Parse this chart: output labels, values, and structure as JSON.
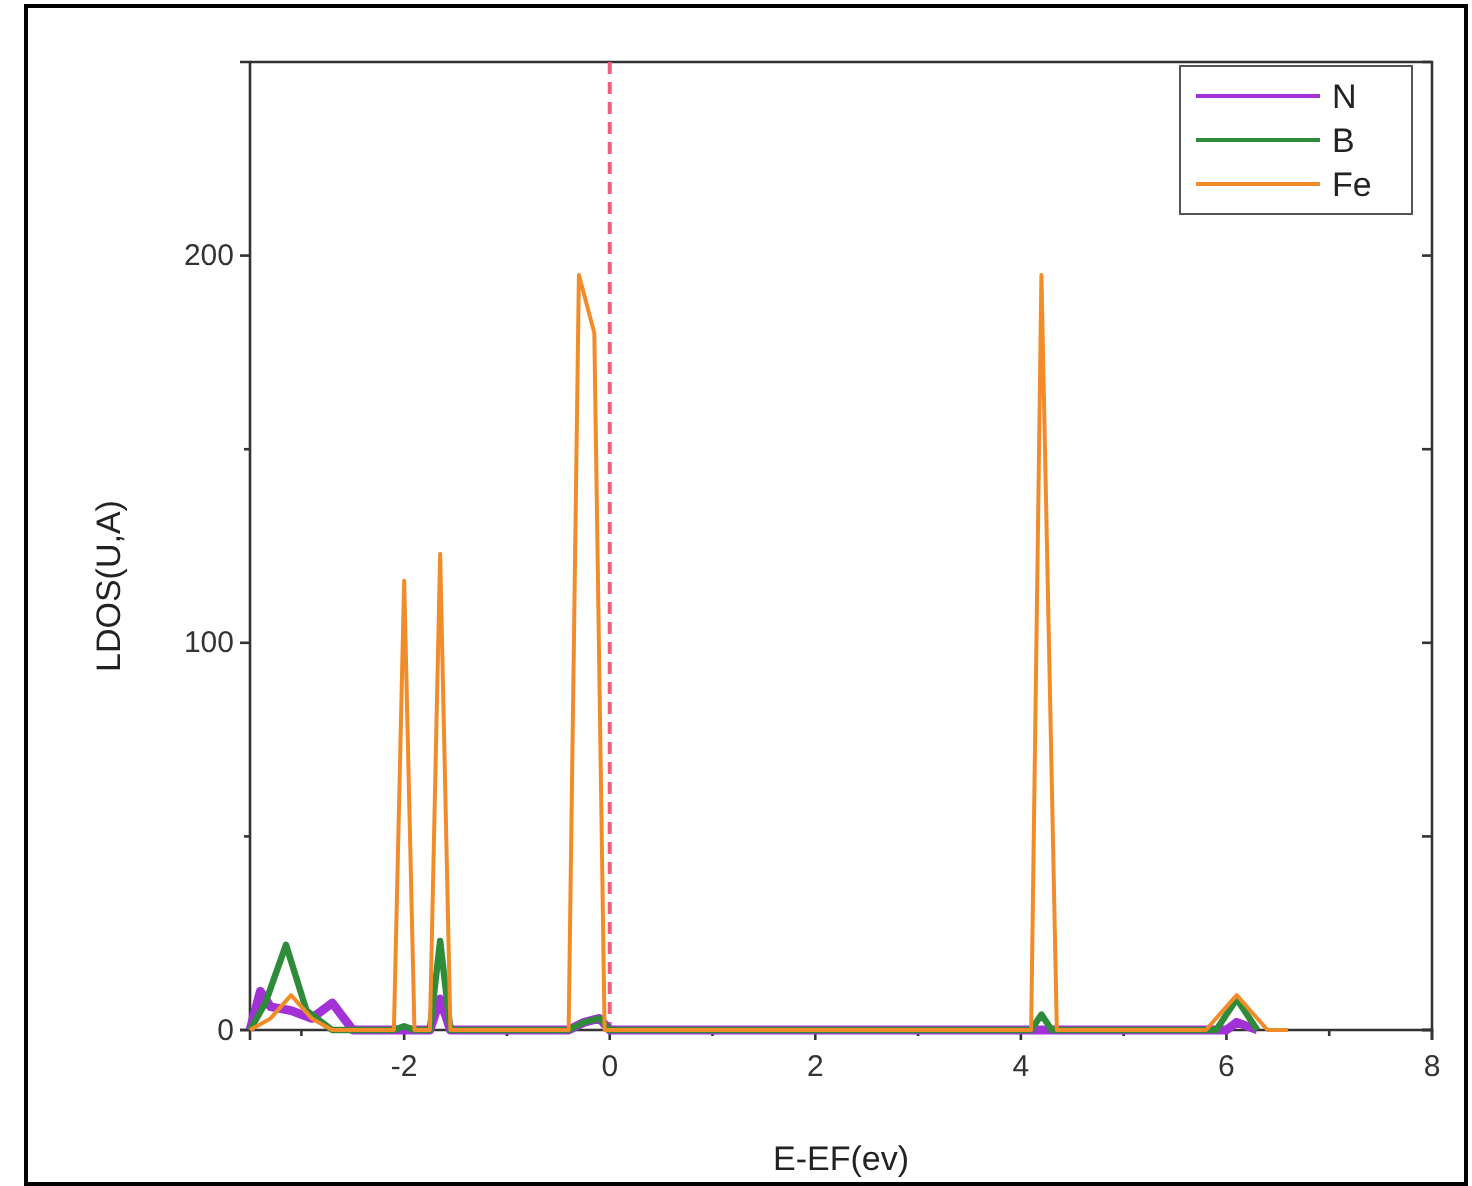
{
  "chart_data": {
    "type": "line",
    "xlabel": "E-EF(ev)",
    "ylabel": "LDOS(U,A)",
    "xlim": [
      -3.5,
      8
    ],
    "ylim": [
      0,
      250
    ],
    "xticks": [
      {
        "value": -3,
        "label": null
      },
      -2,
      {
        "value": -1,
        "label": null
      },
      0,
      {
        "value": 1,
        "label": null
      },
      2,
      {
        "value": 3,
        "label": null
      },
      4,
      {
        "value": 5,
        "label": null
      },
      6,
      {
        "value": 7,
        "label": null
      },
      8
    ],
    "yticks": [
      0,
      {
        "value": 50,
        "label": null
      },
      100,
      {
        "value": 150,
        "label": null
      },
      200
    ],
    "legend": "top right",
    "grid": false,
    "marker": "none",
    "line_style": "solid",
    "ref_lines": [
      {
        "axis": "x",
        "value": 0,
        "color": "#f0607a",
        "line_style": "dashed"
      }
    ],
    "series": [
      {
        "name": "N",
        "color": "#a232d8",
        "x": [
          -3.5,
          -3.4,
          -3.3,
          -3.1,
          -2.9,
          -2.7,
          -2.5,
          -2.0,
          -1.75,
          -1.65,
          -1.55,
          -0.4,
          -0.25,
          -0.1,
          0,
          6.0,
          6.1,
          6.3
        ],
        "values": [
          0,
          10,
          6,
          5,
          3,
          7,
          0,
          0,
          0,
          8,
          0,
          0,
          2,
          3,
          0,
          0,
          2,
          0
        ]
      },
      {
        "name": "B",
        "color": "#2e8b3a",
        "x": [
          -3.5,
          -3.35,
          -3.15,
          -2.95,
          -2.7,
          -2.1,
          -2.0,
          -1.9,
          -1.75,
          -1.65,
          -1.55,
          -0.4,
          -0.25,
          -0.1,
          0,
          4.1,
          4.2,
          4.3,
          5.9,
          6.1,
          6.3
        ],
        "values": [
          0,
          7,
          22,
          5,
          0,
          0,
          1,
          0,
          0,
          23,
          0,
          0,
          2,
          3,
          0,
          0,
          4,
          0,
          0,
          8,
          0
        ]
      },
      {
        "name": "Fe",
        "color": "#f28c28",
        "x": [
          -3.5,
          -3.3,
          -3.1,
          -2.9,
          -2.7,
          -2.1,
          -2.0,
          -1.9,
          -1.75,
          -1.65,
          -1.55,
          -0.4,
          -0.3,
          -0.15,
          -0.05,
          4.1,
          4.2,
          4.35,
          5.8,
          6.1,
          6.4,
          6.6
        ],
        "values": [
          0,
          3,
          9,
          3,
          0,
          0,
          116,
          0,
          0,
          123,
          0,
          0,
          195,
          180,
          0,
          0,
          195,
          0,
          0,
          9,
          0,
          0
        ]
      }
    ]
  }
}
